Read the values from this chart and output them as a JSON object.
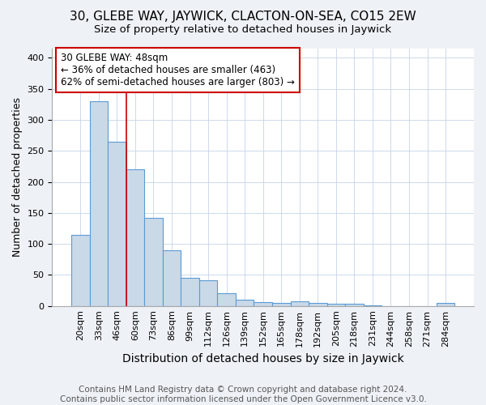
{
  "title": "30, GLEBE WAY, JAYWICK, CLACTON-ON-SEA, CO15 2EW",
  "subtitle": "Size of property relative to detached houses in Jaywick",
  "xlabel": "Distribution of detached houses by size in Jaywick",
  "ylabel": "Number of detached properties",
  "categories": [
    "20sqm",
    "33sqm",
    "46sqm",
    "60sqm",
    "73sqm",
    "86sqm",
    "99sqm",
    "112sqm",
    "126sqm",
    "139sqm",
    "152sqm",
    "165sqm",
    "178sqm",
    "192sqm",
    "205sqm",
    "218sqm",
    "231sqm",
    "244sqm",
    "258sqm",
    "271sqm",
    "284sqm"
  ],
  "values": [
    115,
    330,
    265,
    220,
    142,
    90,
    45,
    42,
    20,
    10,
    6,
    5,
    8,
    5,
    3,
    3,
    1,
    0,
    0,
    0,
    5
  ],
  "bar_color": "#c9d9e8",
  "bar_edge_color": "#5b9bd5",
  "vline_bar_index": 2,
  "vline_color": "#cc0000",
  "annotation_line1": "30 GLEBE WAY: 48sqm",
  "annotation_line2": "← 36% of detached houses are smaller (463)",
  "annotation_line3": "62% of semi-detached houses are larger (803) →",
  "annotation_box_color": "#ffffff",
  "annotation_box_edge_color": "#cc0000",
  "ylim": [
    0,
    415
  ],
  "yticks": [
    0,
    50,
    100,
    150,
    200,
    250,
    300,
    350,
    400
  ],
  "footer": "Contains HM Land Registry data © Crown copyright and database right 2024.\nContains public sector information licensed under the Open Government Licence v3.0.",
  "background_color": "#eef2f7",
  "plot_background_color": "#ffffff",
  "title_fontsize": 11,
  "subtitle_fontsize": 9.5,
  "xlabel_fontsize": 10,
  "ylabel_fontsize": 9,
  "tick_fontsize": 8,
  "footer_fontsize": 7.5,
  "annotation_fontsize": 8.5,
  "grid_color": "#c5d5e8"
}
